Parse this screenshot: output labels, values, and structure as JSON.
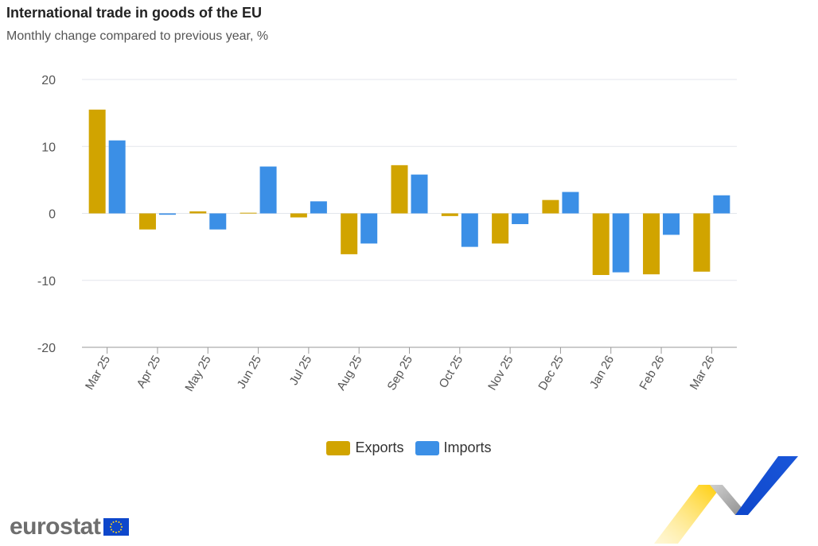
{
  "header": {
    "title": "International trade in goods of the EU",
    "subtitle": "Monthly change compared to previous year, %"
  },
  "legend": {
    "exports_label": "Exports",
    "imports_label": "Imports"
  },
  "logo": {
    "text": "eurostat"
  },
  "colors": {
    "exports": "#d1a400",
    "imports": "#3b8fe6",
    "grid": "#e3e6ec",
    "axis": "#999999",
    "tick_text": "#555555"
  },
  "chart_data": {
    "type": "bar",
    "title": "International trade in goods of the EU",
    "subtitle": "Monthly change compared to previous year, %",
    "categories": [
      "Mar 25",
      "Apr 25",
      "May 25",
      "Jun 25",
      "Jul 25",
      "Aug 25",
      "Sep 25",
      "Oct 25",
      "Nov 25",
      "Dec 25",
      "Jan 26",
      "Feb 26",
      "Mar 26"
    ],
    "series": [
      {
        "name": "Exports",
        "values": [
          15.5,
          -2.4,
          0.3,
          0.1,
          -0.6,
          -6.1,
          7.2,
          -0.4,
          -4.5,
          2.0,
          -9.2,
          -9.1,
          -8.7
        ]
      },
      {
        "name": "Imports",
        "values": [
          10.9,
          -0.2,
          -2.4,
          7.0,
          1.8,
          -4.5,
          5.8,
          -5.0,
          -1.6,
          3.2,
          -8.8,
          -3.2,
          2.7
        ]
      }
    ],
    "ylim": [
      -20,
      20
    ],
    "yticks": [
      20,
      10,
      0,
      -10,
      -20
    ],
    "grid": true,
    "legend_position": "bottom-center"
  }
}
